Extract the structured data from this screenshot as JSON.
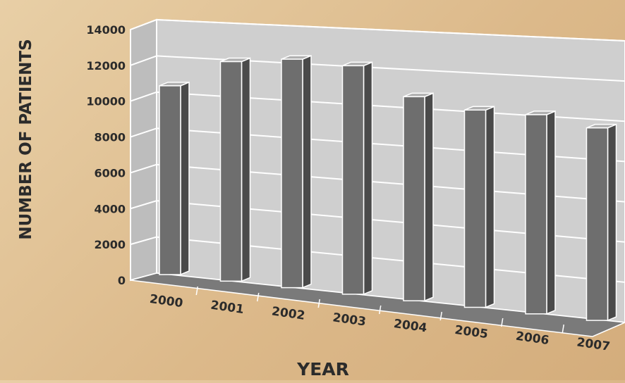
{
  "chart_data": {
    "type": "bar",
    "title": "",
    "xlabel": "YEAR",
    "ylabel": "NUMBER OF PATIENTS",
    "categories": [
      "2000",
      "2001",
      "2002",
      "2003",
      "2004",
      "2005",
      "2006",
      "2007"
    ],
    "values": [
      10500,
      12300,
      12900,
      13000,
      11700,
      11400,
      11600,
      11300
    ],
    "ylim": [
      0,
      14000
    ],
    "yticks": [
      "0",
      "2000",
      "4000",
      "6000",
      "8000",
      "10000",
      "12000",
      "14000"
    ],
    "grid": true,
    "legend": "none",
    "style": "3d",
    "colors": {
      "bar_front": "#6e6e6e",
      "bar_side": "#4a4a4a",
      "bar_top": "#b0b0b0",
      "wall": "#cfcfcf",
      "floor": "#7a7a7a",
      "background": "#dfc096"
    }
  }
}
